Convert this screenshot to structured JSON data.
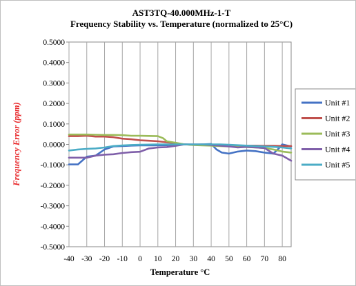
{
  "chart_data": {
    "type": "line",
    "title": "AST3TQ-40.000MHz-1-T",
    "subtitle": "Frequency Stability vs. Temperature (normalized to 25°C)",
    "xlabel": "Temperature °C",
    "ylabel": "Frequency Error (ppm)",
    "ylabel_color": "#e8282b",
    "xlim": [
      -40,
      85
    ],
    "ylim": [
      -0.5,
      0.5
    ],
    "x_ticks": [
      -40,
      -30,
      -20,
      -10,
      0,
      10,
      20,
      30,
      40,
      50,
      60,
      70,
      80
    ],
    "x_tick_labels": [
      "-40",
      "-30",
      "-20",
      "-10",
      "0",
      "10",
      "20",
      "30",
      "40",
      "50",
      "60",
      "70",
      "80"
    ],
    "y_ticks": [
      0.5,
      0.4,
      0.3,
      0.2,
      0.1,
      0.0,
      -0.1,
      -0.2,
      -0.3,
      -0.4,
      -0.5
    ],
    "y_tick_labels": [
      "0.5000",
      "0.4000",
      "0.3000",
      "0.2000",
      "0.1000",
      "0.0000",
      "-0.1000",
      "-0.2000",
      "-0.3000",
      "-0.4000",
      "-0.5000"
    ],
    "grid": "vertical",
    "legend_position": "right",
    "series": [
      {
        "name": "Unit #1",
        "color": "#4472c4",
        "points": [
          [
            -40,
            -0.098
          ],
          [
            -35,
            -0.098
          ],
          [
            -30,
            -0.06
          ],
          [
            -25,
            -0.055
          ],
          [
            -20,
            -0.025
          ],
          [
            -15,
            -0.01
          ],
          [
            -10,
            -0.008
          ],
          [
            -5,
            -0.006
          ],
          [
            0,
            -0.005
          ],
          [
            5,
            -0.005
          ],
          [
            10,
            -0.005
          ],
          [
            15,
            -0.004
          ],
          [
            20,
            -0.002
          ],
          [
            25,
            0.0
          ],
          [
            30,
            -0.002
          ],
          [
            35,
            0.0
          ],
          [
            40,
            0.002
          ],
          [
            43,
            -0.025
          ],
          [
            46,
            -0.04
          ],
          [
            50,
            -0.045
          ],
          [
            55,
            -0.035
          ],
          [
            60,
            -0.03
          ],
          [
            65,
            -0.033
          ],
          [
            70,
            -0.04
          ],
          [
            75,
            -0.045
          ],
          [
            78,
            -0.02
          ],
          [
            80,
            0.0
          ],
          [
            85,
            -0.01
          ]
        ]
      },
      {
        "name": "Unit #2",
        "color": "#c0504d",
        "points": [
          [
            -40,
            0.04
          ],
          [
            -35,
            0.04
          ],
          [
            -30,
            0.042
          ],
          [
            -25,
            0.038
          ],
          [
            -20,
            0.038
          ],
          [
            -15,
            0.035
          ],
          [
            -10,
            0.028
          ],
          [
            -5,
            0.025
          ],
          [
            0,
            0.02
          ],
          [
            5,
            0.018
          ],
          [
            10,
            0.015
          ],
          [
            15,
            0.01
          ],
          [
            20,
            0.005
          ],
          [
            25,
            0.0
          ],
          [
            30,
            -0.002
          ],
          [
            35,
            -0.003
          ],
          [
            40,
            -0.004
          ],
          [
            45,
            -0.004
          ],
          [
            50,
            -0.005
          ],
          [
            55,
            -0.006
          ],
          [
            60,
            -0.006
          ],
          [
            65,
            -0.006
          ],
          [
            70,
            -0.007
          ],
          [
            75,
            -0.007
          ],
          [
            80,
            -0.008
          ],
          [
            85,
            -0.008
          ]
        ]
      },
      {
        "name": "Unit #3",
        "color": "#9bbb59",
        "points": [
          [
            -40,
            0.048
          ],
          [
            -35,
            0.048
          ],
          [
            -30,
            0.048
          ],
          [
            -25,
            0.047
          ],
          [
            -20,
            0.046
          ],
          [
            -15,
            0.046
          ],
          [
            -10,
            0.045
          ],
          [
            -5,
            0.042
          ],
          [
            0,
            0.042
          ],
          [
            5,
            0.041
          ],
          [
            10,
            0.04
          ],
          [
            13,
            0.03
          ],
          [
            15,
            0.015
          ],
          [
            20,
            0.008
          ],
          [
            25,
            0.0
          ],
          [
            30,
            -0.003
          ],
          [
            35,
            -0.005
          ],
          [
            40,
            -0.006
          ],
          [
            45,
            -0.008
          ],
          [
            50,
            -0.01
          ],
          [
            55,
            -0.012
          ],
          [
            60,
            -0.013
          ],
          [
            65,
            -0.015
          ],
          [
            70,
            -0.018
          ],
          [
            75,
            -0.025
          ],
          [
            80,
            -0.035
          ],
          [
            85,
            -0.04
          ]
        ]
      },
      {
        "name": "Unit #4",
        "color": "#7f5fa9",
        "points": [
          [
            -40,
            -0.065
          ],
          [
            -35,
            -0.065
          ],
          [
            -30,
            -0.065
          ],
          [
            -25,
            -0.055
          ],
          [
            -20,
            -0.05
          ],
          [
            -15,
            -0.048
          ],
          [
            -10,
            -0.042
          ],
          [
            -5,
            -0.038
          ],
          [
            0,
            -0.036
          ],
          [
            5,
            -0.02
          ],
          [
            10,
            -0.015
          ],
          [
            15,
            -0.013
          ],
          [
            20,
            -0.007
          ],
          [
            25,
            0.0
          ],
          [
            30,
            0.0
          ],
          [
            35,
            0.0
          ],
          [
            40,
            -0.003
          ],
          [
            45,
            -0.006
          ],
          [
            50,
            -0.01
          ],
          [
            55,
            -0.015
          ],
          [
            60,
            -0.012
          ],
          [
            65,
            -0.015
          ],
          [
            70,
            -0.018
          ],
          [
            75,
            -0.045
          ],
          [
            80,
            -0.055
          ],
          [
            85,
            -0.08
          ]
        ]
      },
      {
        "name": "Unit #5",
        "color": "#4bacc6",
        "points": [
          [
            -40,
            -0.03
          ],
          [
            -35,
            -0.025
          ],
          [
            -30,
            -0.022
          ],
          [
            -25,
            -0.02
          ],
          [
            -20,
            -0.015
          ],
          [
            -15,
            -0.008
          ],
          [
            -10,
            -0.005
          ],
          [
            -5,
            -0.003
          ],
          [
            0,
            -0.002
          ],
          [
            5,
            -0.001
          ],
          [
            10,
            0.0
          ],
          [
            15,
            0.0
          ],
          [
            20,
            0.0
          ],
          [
            25,
            0.0
          ],
          [
            30,
            0.0
          ],
          [
            35,
            0.0
          ],
          [
            40,
            0.0
          ],
          [
            45,
            0.0
          ],
          [
            50,
            -0.002
          ],
          [
            55,
            -0.004
          ],
          [
            60,
            -0.006
          ],
          [
            65,
            -0.008
          ],
          [
            70,
            -0.01
          ],
          [
            75,
            -0.012
          ],
          [
            80,
            -0.015
          ],
          [
            85,
            -0.02
          ]
        ]
      }
    ]
  }
}
